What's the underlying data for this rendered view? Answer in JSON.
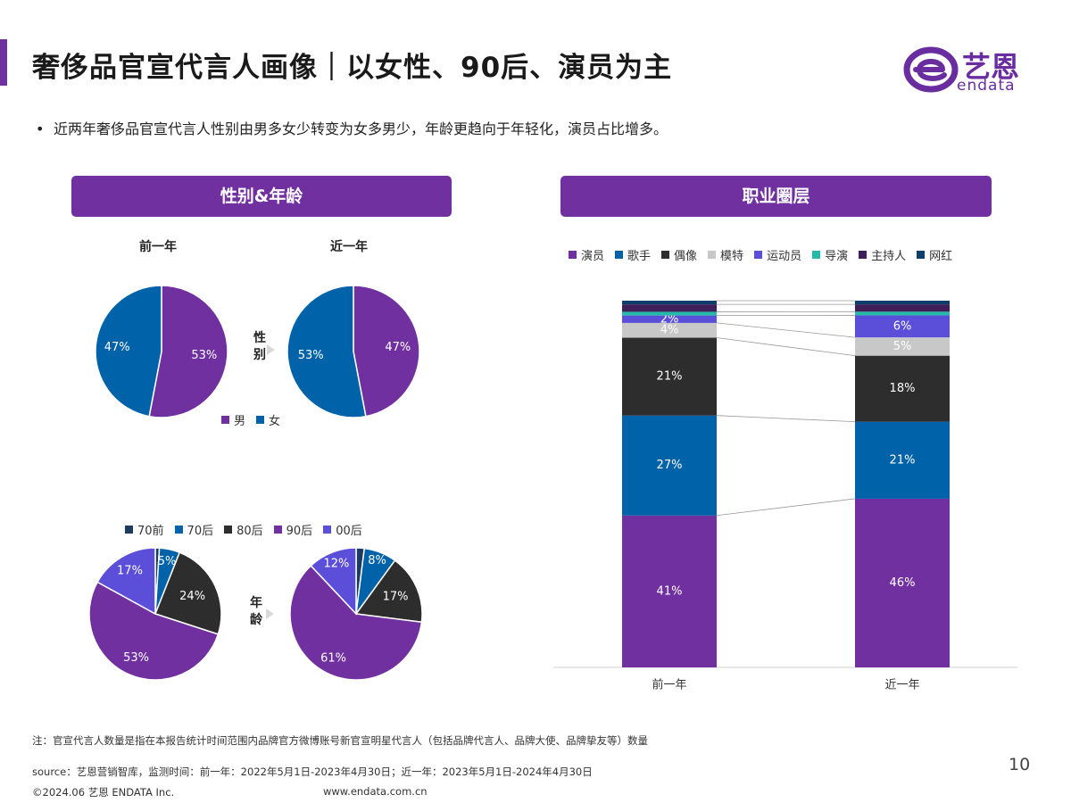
{
  "title": "奢侈品官宣代言人画像｜以女性、90后、演员为主",
  "logo": {
    "name": "艺恩",
    "sub": "endata"
  },
  "bullet": "近两年奢侈品官宣代言人性别由男多女少转变为女多男少，年龄更趋向于年轻化，演员占比增多。",
  "panels": {
    "left": "性别&年龄",
    "right": "职业圈层"
  },
  "pie_titles": {
    "prev": "前一年",
    "recent": "近一年"
  },
  "side_labels": {
    "gender": [
      "性",
      "别"
    ],
    "age": [
      "年",
      "龄"
    ]
  },
  "gender_legend": [
    "男",
    "女"
  ],
  "age_legend": [
    "70前",
    "70后",
    "80后",
    "90后",
    "00后"
  ],
  "occupation_legend": [
    "演员",
    "歌手",
    "偶像",
    "模特",
    "运动员",
    "导演",
    "主持人",
    "网红"
  ],
  "colors": {
    "purple": "#7030a0",
    "blue": "#0062a8",
    "dark": "#2d2d2d",
    "gray": "#c8c8c8",
    "violet": "#5b4ed8",
    "teal": "#26b9a8",
    "deep_purple": "#3f1f5a",
    "navy": "#0e3f6b"
  },
  "chart_data": [
    {
      "type": "pie",
      "title": "前一年",
      "group": "性别",
      "labels": [
        "男",
        "女"
      ],
      "values": [
        53,
        47
      ]
    },
    {
      "type": "pie",
      "title": "近一年",
      "group": "性别",
      "labels": [
        "男",
        "女"
      ],
      "values": [
        47,
        53
      ]
    },
    {
      "type": "pie",
      "title": "前一年",
      "group": "年龄",
      "labels": [
        "70前",
        "70后",
        "80后",
        "90后",
        "00后"
      ],
      "values": [
        1,
        5,
        24,
        53,
        17
      ],
      "data_labels": [
        "",
        "5%",
        "24%",
        "53%",
        "17%"
      ]
    },
    {
      "type": "pie",
      "title": "近一年",
      "group": "年龄",
      "labels": [
        "70前",
        "70后",
        "80后",
        "90后",
        "00后"
      ],
      "values": [
        2,
        8,
        17,
        61,
        12
      ],
      "data_labels": [
        "",
        "8%",
        "17%",
        "61%",
        "12%"
      ]
    },
    {
      "type": "bar",
      "stacked": true,
      "percent": true,
      "categories": [
        "前一年",
        "近一年"
      ],
      "series": [
        {
          "name": "演员",
          "values": [
            41,
            46
          ],
          "labels": [
            "41%",
            "46%"
          ]
        },
        {
          "name": "歌手",
          "values": [
            27,
            21
          ],
          "labels": [
            "27%",
            "21%"
          ]
        },
        {
          "name": "偶像",
          "values": [
            21,
            18
          ],
          "labels": [
            "21%",
            "18%"
          ]
        },
        {
          "name": "模特",
          "values": [
            4,
            5
          ],
          "labels": [
            "4%",
            "5%"
          ]
        },
        {
          "name": "运动员",
          "values": [
            2,
            6
          ],
          "labels": [
            "2%",
            "6%"
          ]
        },
        {
          "name": "导演",
          "values": [
            1,
            1
          ],
          "labels": [
            "",
            ""
          ]
        },
        {
          "name": "主持人",
          "values": [
            2,
            2
          ],
          "labels": [
            "",
            ""
          ]
        },
        {
          "name": "网红",
          "values": [
            1,
            1
          ],
          "labels": [
            "",
            ""
          ]
        }
      ],
      "ylim": [
        0,
        100
      ],
      "legend": "top"
    }
  ],
  "footnote": "注：官宣代言人数量是指在本报告统计时间范围内品牌官方微博账号新官宣明星代言人（包括品牌代言人、品牌大使、品牌挚友等）数量",
  "source": "source：艺恩营销智库，监测时间：前一年：2022年5月1日-2023年4月30日；近一年：2023年5月1日-2024年4月30日",
  "copyright": "©2024.06 艺恩 ENDATA Inc.",
  "website": "www.endata.com.cn",
  "page_number": "10"
}
